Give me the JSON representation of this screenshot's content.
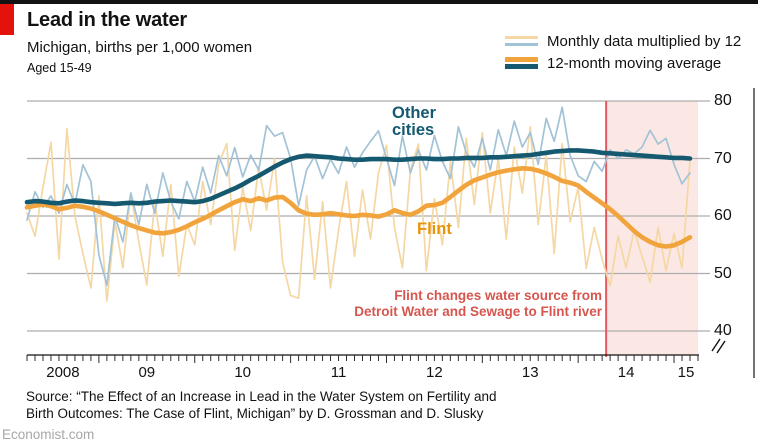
{
  "header": {
    "title": "Lead in the water",
    "subtitle": "Michigan, births per 1,000 women",
    "note": "Aged 15-49"
  },
  "legend": [
    {
      "label": "Monthly data multiplied by 12"
    },
    {
      "label": "12-month moving average"
    }
  ],
  "series_labels": {
    "other_line1": "Other",
    "other_line2": "cities",
    "flint": "Flint"
  },
  "annotation": {
    "line1": "Flint changes water source from",
    "line2": "Detroit Water and Sewage to Flint river"
  },
  "source": {
    "line1": "Source: “The Effect of an Increase in Lead in the Water System on Fertility and",
    "line2": "Birth Outcomes: The Case of Flint, Michigan” by D. Grossman and D. Slusky"
  },
  "footer": {
    "site": "Economist.com"
  },
  "colors": {
    "brand_red": "#e3120b",
    "teal": "#14596f",
    "orange": "#f1a33c",
    "light_blue": "#a2c3d7",
    "tan": "#f5d7a4",
    "grid": "#adadad",
    "event_line": "#e4595c",
    "shade": "#fbe8e4",
    "annotation": "#d6564f",
    "text": "#121212",
    "muted": "#a7a7a7"
  },
  "chart_data": {
    "type": "line",
    "title": "Lead in the water",
    "subtitle": "Michigan, births per 1,000 women (aged 15-49)",
    "xlabel": "",
    "ylabel": "births per 1,000 women",
    "grid": true,
    "legend_position": "top-right",
    "ylim": [
      40,
      80
    ],
    "y_axis_break": true,
    "y_ticks": [
      80,
      70,
      60,
      50,
      40
    ],
    "x_unit": "month",
    "x_start": "2008-04",
    "x_end": "2015-03",
    "x_count": 84,
    "x_tick_labels": [
      "2008",
      "09",
      "10",
      "11",
      "12",
      "13",
      "14",
      "15"
    ],
    "event_line": {
      "month_index": 72.5,
      "note": "Flint changes water source from Detroit Water and Sewage to Flint river"
    },
    "shaded_region": {
      "from_month_index": 72.5,
      "to_month_index": 84
    },
    "series": [
      {
        "name": "Flint (monthly data multiplied by 12)",
        "color": "#f5d7a4",
        "thick": false,
        "values": [
          60.5,
          56.5,
          65.0,
          72.8,
          52.5,
          75.2,
          60.0,
          53.5,
          47.5,
          63.5,
          45.2,
          59.0,
          51.0,
          64.0,
          55.5,
          48.0,
          62.5,
          53.0,
          65.5,
          49.5,
          58.5,
          55.0,
          66.0,
          58.5,
          69.0,
          72.6,
          54.0,
          65.0,
          57.5,
          68.5,
          61.0,
          70.0,
          52.0,
          46.2,
          45.7,
          63.5,
          49.0,
          62.5,
          47.5,
          57.5,
          66.0,
          53.0,
          64.5,
          56.0,
          67.5,
          72.3,
          58.0,
          51.0,
          68.0,
          72.5,
          50.5,
          63.0,
          55.0,
          69.5,
          58.0,
          73.5,
          62.0,
          74.5,
          60.5,
          70.0,
          56.0,
          72.0,
          64.0,
          75.5,
          58.5,
          70.5,
          53.5,
          72.6,
          59.0,
          65.0,
          50.9,
          58.0,
          52.5,
          47.8,
          56.5,
          51.0,
          57.5,
          53.0,
          48.5,
          58.0,
          50.5,
          57.0,
          51.0,
          69.7
        ]
      },
      {
        "name": "Other cities (monthly data multiplied by 12)",
        "color": "#a2c3d7",
        "thick": false,
        "values": [
          59.3,
          64.2,
          61.5,
          63.5,
          60.5,
          65.5,
          62.0,
          68.9,
          66.0,
          53.2,
          48.0,
          60.0,
          55.5,
          64.0,
          58.5,
          65.5,
          60.5,
          67.5,
          62.5,
          59.5,
          66.0,
          62.5,
          68.5,
          64.0,
          70.5,
          67.0,
          71.9,
          66.8,
          70.6,
          68.0,
          75.7,
          73.9,
          74.5,
          70.0,
          61.8,
          68.0,
          70.4,
          66.5,
          69.9,
          67.4,
          72.0,
          68.5,
          71.0,
          73.0,
          74.8,
          70.0,
          65.3,
          73.9,
          67.5,
          71.5,
          68.0,
          74.0,
          69.5,
          66.5,
          75.5,
          71.0,
          68.5,
          73.5,
          68.0,
          75.0,
          70.5,
          76.5,
          72.0,
          74.5,
          69.0,
          77.0,
          73.0,
          78.9,
          70.5,
          67.0,
          66.0,
          69.5,
          67.8,
          71.5,
          70.0,
          71.5,
          70.8,
          72.0,
          74.9,
          72.5,
          73.5,
          69.0,
          65.6,
          67.5
        ]
      },
      {
        "name": "Flint (12-month moving average)",
        "color": "#f1a33c",
        "thick": true,
        "values": [
          61.5,
          61.8,
          62.0,
          61.7,
          61.2,
          61.4,
          61.8,
          61.6,
          61.3,
          60.8,
          60.2,
          59.6,
          59.0,
          58.4,
          57.9,
          57.5,
          57.1,
          57.0,
          57.2,
          57.6,
          58.2,
          58.9,
          59.5,
          60.2,
          61.0,
          61.7,
          62.4,
          62.9,
          62.6,
          63.1,
          62.7,
          63.2,
          63.3,
          62.3,
          61.0,
          60.4,
          60.2,
          60.3,
          60.5,
          60.3,
          60.1,
          60.0,
          60.2,
          60.1,
          59.9,
          60.3,
          61.0,
          60.5,
          60.2,
          60.8,
          61.8,
          61.9,
          62.3,
          63.3,
          64.4,
          65.4,
          66.2,
          66.7,
          67.2,
          67.6,
          67.9,
          68.1,
          68.3,
          68.2,
          67.9,
          67.4,
          66.8,
          66.1,
          65.8,
          65.3,
          64.2,
          63.2,
          62.2,
          61.2,
          60.0,
          58.7,
          57.4,
          56.3,
          55.5,
          54.9,
          54.7,
          54.9,
          55.5,
          56.3
        ]
      },
      {
        "name": "Other cities (12-month moving average)",
        "color": "#14596f",
        "thick": true,
        "values": [
          62.4,
          62.6,
          62.5,
          62.3,
          62.2,
          62.5,
          62.7,
          62.6,
          62.4,
          62.3,
          62.2,
          62.1,
          62.2,
          62.3,
          62.2,
          62.3,
          62.5,
          62.6,
          62.7,
          62.6,
          62.5,
          62.4,
          62.6,
          63.0,
          63.6,
          64.2,
          64.8,
          65.5,
          66.3,
          67.0,
          67.8,
          68.6,
          69.3,
          69.9,
          70.3,
          70.5,
          70.4,
          70.3,
          70.2,
          70.0,
          69.9,
          69.8,
          69.8,
          69.9,
          69.9,
          69.9,
          69.8,
          69.8,
          69.9,
          70.0,
          70.0,
          69.9,
          69.9,
          70.0,
          70.0,
          70.1,
          70.1,
          70.1,
          70.2,
          70.2,
          70.3,
          70.4,
          70.5,
          70.6,
          70.8,
          71.0,
          71.2,
          71.3,
          71.4,
          71.4,
          71.3,
          71.2,
          71.0,
          70.9,
          70.8,
          70.7,
          70.6,
          70.5,
          70.4,
          70.3,
          70.2,
          70.1,
          70.1,
          70.0
        ]
      }
    ]
  }
}
